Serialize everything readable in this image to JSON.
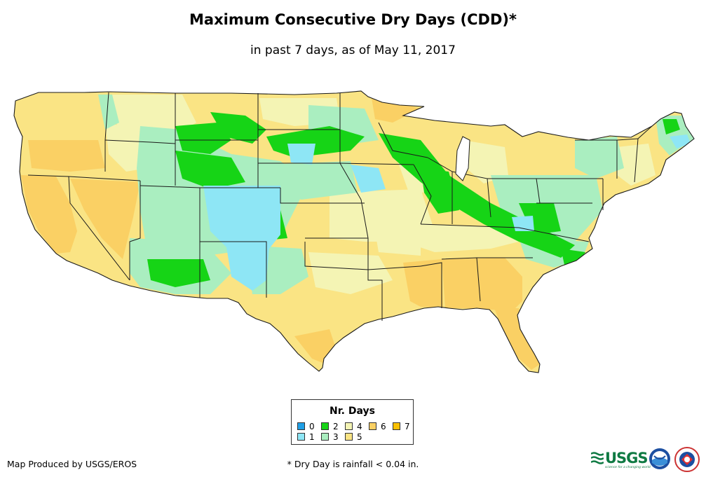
{
  "header": {
    "title": "Maximum Consecutive Dry Days (CDD)*",
    "subtitle": "in past 7 days, as of May 11, 2017"
  },
  "map": {
    "region": "Contiguous United States",
    "palette": {
      "0": "#1f9fe6",
      "1": "#8ee6f5",
      "2": "#16d416",
      "3": "#aaeec0",
      "4": "#f4f4b4",
      "5": "#fae484",
      "6": "#fad064",
      "7": "#fac000"
    },
    "land_background_class": "5",
    "state_border_color": "#1a1a1a"
  },
  "legend": {
    "title": "Nr. Days",
    "items": [
      {
        "label": "0",
        "color": "#1f9fe6"
      },
      {
        "label": "2",
        "color": "#16d416"
      },
      {
        "label": "4",
        "color": "#f4f4b4"
      },
      {
        "label": "6",
        "color": "#fad064"
      },
      {
        "label": "7",
        "color": "#fac000"
      },
      {
        "label": "1",
        "color": "#8ee6f5"
      },
      {
        "label": "3",
        "color": "#aaeec0"
      },
      {
        "label": "5",
        "color": "#fae484"
      }
    ]
  },
  "footer": {
    "credit": "Map Produced by USGS/EROS",
    "footnote": "* Dry Day is rainfall < 0.04 in."
  },
  "logos": {
    "usgs_text": "USGS",
    "usgs_tagline": "science for a changing world",
    "noaa": "noaa-logo",
    "nws": "nws-logo"
  }
}
